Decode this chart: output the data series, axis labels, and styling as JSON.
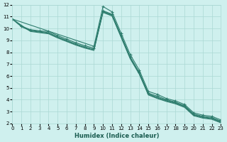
{
  "xlabel": "Humidex (Indice chaleur)",
  "bg_color": "#cff0ee",
  "grid_color": "#aad8d4",
  "line_color": "#2e7d6e",
  "xlim": [
    0,
    23
  ],
  "ylim": [
    2,
    12
  ],
  "xticks": [
    0,
    1,
    2,
    3,
    4,
    5,
    6,
    7,
    8,
    9,
    10,
    11,
    12,
    13,
    14,
    15,
    16,
    17,
    18,
    19,
    20,
    21,
    22,
    23
  ],
  "yticks": [
    2,
    3,
    4,
    5,
    6,
    7,
    8,
    9,
    10,
    11,
    12
  ],
  "series": [
    {
      "x": [
        0,
        1,
        2,
        3,
        4,
        5,
        6,
        7,
        8,
        9,
        10,
        11,
        12,
        13,
        14,
        15,
        16,
        17,
        18,
        19,
        20,
        21,
        22,
        23
      ],
      "y": [
        10.8,
        10.2,
        9.9,
        9.8,
        9.75,
        9.4,
        9.1,
        8.8,
        8.55,
        8.35,
        11.5,
        11.2,
        9.4,
        7.6,
        6.3,
        4.55,
        4.3,
        4.0,
        3.8,
        3.5,
        2.8,
        2.6,
        2.5,
        2.2
      ],
      "marker": "+"
    },
    {
      "x": [
        0,
        1,
        2,
        3,
        4,
        5,
        6,
        7,
        8,
        9,
        10,
        11,
        12,
        13,
        14,
        15,
        16,
        17,
        18,
        19,
        20,
        21,
        22,
        23
      ],
      "y": [
        10.8,
        10.2,
        9.85,
        9.75,
        9.65,
        9.3,
        9.0,
        8.7,
        8.45,
        8.25,
        11.45,
        11.15,
        9.35,
        7.55,
        6.25,
        4.5,
        4.2,
        3.95,
        3.75,
        3.45,
        2.75,
        2.55,
        2.45,
        2.15
      ],
      "marker": null
    },
    {
      "x": [
        0,
        1,
        2,
        3,
        4,
        5,
        6,
        7,
        8,
        9,
        10,
        11,
        12,
        13,
        14,
        15,
        16,
        17,
        18,
        19,
        20,
        21,
        22,
        23
      ],
      "y": [
        10.8,
        10.15,
        9.8,
        9.7,
        9.6,
        9.25,
        8.95,
        8.65,
        8.4,
        8.2,
        11.4,
        11.1,
        9.3,
        7.5,
        6.2,
        4.45,
        4.15,
        3.9,
        3.7,
        3.4,
        2.7,
        2.5,
        2.4,
        2.1
      ],
      "marker": null
    },
    {
      "x": [
        0,
        2,
        3,
        4,
        5,
        6,
        7,
        8,
        9,
        10,
        11,
        12,
        13,
        14,
        15,
        16,
        17,
        18,
        19,
        20,
        21,
        22,
        23
      ],
      "y": [
        10.8,
        9.75,
        9.65,
        9.55,
        9.2,
        8.9,
        8.6,
        8.35,
        8.15,
        11.35,
        11.05,
        9.25,
        7.45,
        6.15,
        4.4,
        4.1,
        3.85,
        3.65,
        3.35,
        2.65,
        2.45,
        2.35,
        2.05
      ],
      "marker": null
    },
    {
      "x": [
        0,
        9,
        10,
        11,
        12,
        13,
        14,
        15,
        16,
        17,
        18,
        19,
        20,
        21,
        22,
        23
      ],
      "y": [
        10.8,
        8.5,
        11.85,
        11.4,
        9.6,
        7.8,
        6.5,
        4.7,
        4.45,
        4.1,
        3.9,
        3.6,
        2.9,
        2.7,
        2.6,
        2.3
      ],
      "marker": "+"
    }
  ]
}
